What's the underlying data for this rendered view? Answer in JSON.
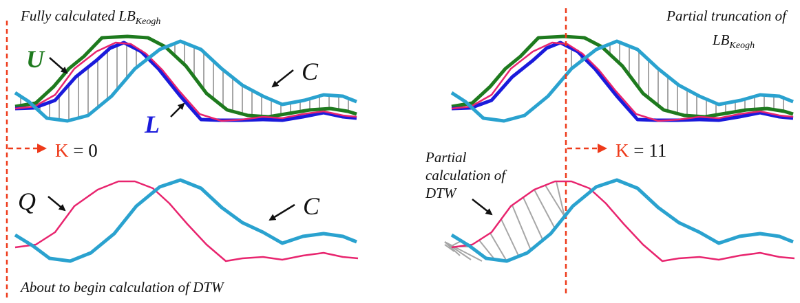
{
  "colors": {
    "upper": "#1e7a1e",
    "lower": "#1a1adb",
    "query": "#e8246e",
    "candidate": "#2aa2cf",
    "marker": "#ee3a1a",
    "hatch": "#a6a6a6",
    "text": "#111111"
  },
  "left_panel": {
    "title_text": "Fully calculated LB",
    "title_sub": "Keogh",
    "label_u": "U",
    "label_l": "L",
    "label_c_top": "C",
    "k_prefix": "K",
    "k_rest": " = 0",
    "label_q": "Q",
    "label_c_bottom": "C",
    "caption": "About to begin calculation of  DTW"
  },
  "right_panel": {
    "title_line1": "Partial truncation of",
    "title_line2_text": "LB",
    "title_line2_sub": "Keogh",
    "k_prefix": "K",
    "k_rest": " = 11",
    "dtw_line1": "Partial",
    "dtw_line2": "calculation of",
    "dtw_line3": "DTW"
  }
}
